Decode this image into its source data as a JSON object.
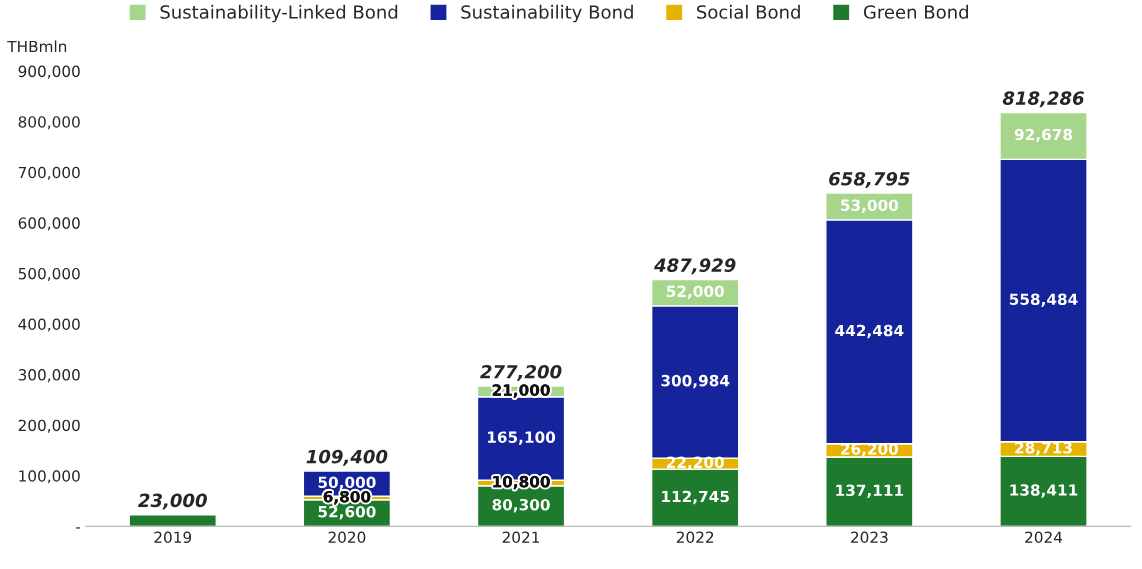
{
  "chart_data": {
    "type": "bar",
    "stacked": true,
    "ylabel": "THBmln",
    "categories": [
      "2019",
      "2020",
      "2021",
      "2022",
      "2023",
      "2024"
    ],
    "series": [
      {
        "name": "Green Bond",
        "color": "#1e7a2c",
        "values": [
          23000,
          52600,
          80300,
          112745,
          137111,
          138411
        ],
        "value_labels": [
          null,
          "52,600",
          "80,300",
          "112,745",
          "137,111",
          "138,411"
        ]
      },
      {
        "name": "Social Bond",
        "color": "#e6b400",
        "values": [
          null,
          6800,
          10800,
          22200,
          26200,
          28713
        ],
        "value_labels": [
          null,
          "6,800",
          "10,800",
          "22,200",
          "26,200",
          "28,713"
        ]
      },
      {
        "name": "Sustainability Bond",
        "color": "#15249a",
        "values": [
          null,
          50000,
          165100,
          300984,
          442484,
          558484
        ],
        "value_labels": [
          null,
          "50,000",
          "165,100",
          "300,984",
          "442,484",
          "558,484"
        ]
      },
      {
        "name": "Sustainability-Linked Bond",
        "color": "#a6d68c",
        "values": [
          null,
          null,
          21000,
          52000,
          53000,
          92678
        ],
        "value_labels": [
          null,
          null,
          "21,000",
          "52,000",
          "53,000",
          "92,678"
        ]
      }
    ],
    "totals": [
      "23,000",
      "109,400",
      "277,200",
      "487,929",
      "658,795",
      "818,286"
    ],
    "ylim": [
      0,
      900000
    ],
    "yticks": [
      {
        "value": 0,
        "label": "-"
      },
      {
        "value": 100000,
        "label": "100,000"
      },
      {
        "value": 200000,
        "label": "200,000"
      },
      {
        "value": 300000,
        "label": "300,000"
      },
      {
        "value": 400000,
        "label": "400,000"
      },
      {
        "value": 500000,
        "label": "500,000"
      },
      {
        "value": 600000,
        "label": "600,000"
      },
      {
        "value": 700000,
        "label": "700,000"
      },
      {
        "value": 800000,
        "label": "800,000"
      },
      {
        "value": 900000,
        "label": "900,000"
      }
    ],
    "legend": "top",
    "grid": false
  }
}
